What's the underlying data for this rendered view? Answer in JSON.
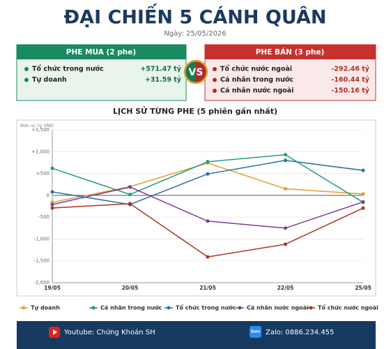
{
  "header": {
    "title": "ĐẠI CHIẾN 5 CÁNH QUÂN",
    "date": "Ngày: 25/05/2026"
  },
  "buy_panel": {
    "title": "PHE MUA  (2 phe)",
    "rows": [
      {
        "label": "Tổ chức trong nước",
        "value": "+571.47 tỷ"
      },
      {
        "label": "Tự doanh",
        "value": "+31.59 tỷ"
      }
    ]
  },
  "vs": "VS",
  "sell_panel": {
    "title": "PHE BÁN  (3 phe)",
    "rows": [
      {
        "label": "Tổ chức nước ngoài",
        "value": "-292.46 tỷ"
      },
      {
        "label": "Cá nhân trong nước",
        "value": "-160.44 tỷ"
      },
      {
        "label": "Cá nhân nước ngoài",
        "value": "-150.16 tỷ"
      }
    ]
  },
  "chart_data": {
    "type": "line",
    "title": "LỊCH SỬ TỪNG PHE (5 phiên gần nhất)",
    "y_label": "Đơn vị: tỷ VND",
    "categories": [
      "19/05",
      "20/05",
      "21/05",
      "22/05",
      "25/05"
    ],
    "series": [
      {
        "name": "Tự doanh",
        "color": "#e0a030",
        "values": [
          -160,
          200,
          740,
          150,
          31.59
        ]
      },
      {
        "name": "Cá nhân trong nước",
        "color": "#1f9a7e",
        "values": [
          620,
          20,
          770,
          930,
          -160.44
        ]
      },
      {
        "name": "Tổ chức trong nước",
        "color": "#2471a3",
        "values": [
          80,
          -210,
          490,
          800,
          571.47
        ]
      },
      {
        "name": "Cá nhân nước ngoài",
        "color": "#7d3c98",
        "values": [
          -210,
          190,
          -590,
          -750,
          -150.16
        ]
      },
      {
        "name": "Tổ chức nước ngoài",
        "color": "#a93226",
        "values": [
          -290,
          -190,
          -1410,
          -1120,
          -292.46
        ]
      }
    ],
    "ylim": [
      -2000,
      1500
    ],
    "yticks": [
      {
        "value": -2000,
        "label": "-2,000"
      },
      {
        "value": -1500,
        "label": "-1,500"
      },
      {
        "value": -1000,
        "label": "-1,000"
      },
      -500,
      0,
      {
        "value": 500,
        "label": "+500"
      },
      {
        "value": 1000,
        "label": "+1,000"
      },
      {
        "value": 1500,
        "label": "+1,500"
      }
    ],
    "grid": true
  },
  "footer": {
    "youtube": "Youtube: Chứng Khoán SH",
    "zalo_icon": "Zalo",
    "zalo": "Zalo: 0886.234.455"
  }
}
